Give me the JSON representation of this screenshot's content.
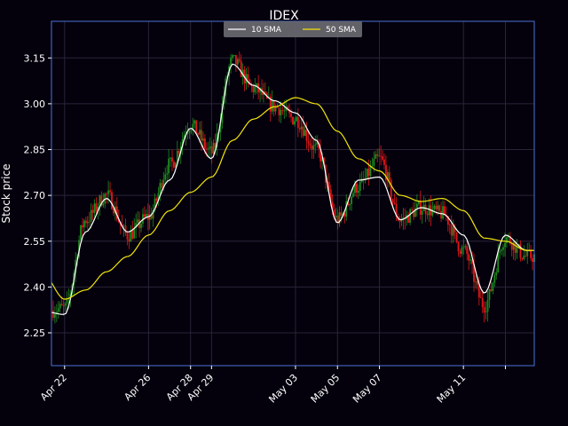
{
  "chart_data": {
    "type": "line",
    "title": "IDEX",
    "xlabel": "",
    "ylabel": "Stock price",
    "ylim": [
      2.1425,
      3.27
    ],
    "yticks": [
      2.25,
      2.4,
      2.55,
      2.7,
      2.85,
      3.0,
      3.15
    ],
    "ytick_labels": [
      "2.25",
      "2.40",
      "2.55",
      "2.70",
      "2.85",
      "3.00",
      "3.15"
    ],
    "x_range_days": [
      "Apr 21 09:00",
      "May 14 09:00"
    ],
    "xticks": [
      {
        "label": "Apr 22",
        "date": "Apr 22"
      },
      {
        "label": "Apr 26",
        "date": "Apr 26"
      },
      {
        "label": "Apr 28",
        "date": "Apr 28"
      },
      {
        "label": "Apr 29",
        "date": "Apr 29"
      },
      {
        "label": "May 03",
        "date": "May 03"
      },
      {
        "label": "May 05",
        "date": "May 05"
      },
      {
        "label": "May 07",
        "date": "May 07"
      },
      {
        "label": "May 11",
        "date": "May 11"
      },
      {
        "label": "",
        "date": "May 13"
      }
    ],
    "grid": true,
    "legend_position": "top-center",
    "colors": {
      "background": "#04010d",
      "axes_frame": "#4a72d8",
      "grid": "#2a2438",
      "up_candle": "#1f8a1f",
      "down_candle": "#e01818",
      "sma10": "#ffffff",
      "sma50": "#f2e40a",
      "legend_bg": "#6b6b72"
    },
    "price_series_x": [
      "Apr 21",
      "Apr 22",
      "Apr 23",
      "Apr 24",
      "Apr 25",
      "Apr 26",
      "Apr 27",
      "Apr 28",
      "Apr 29",
      "Apr 30",
      "May 01",
      "May 02",
      "May 03",
      "May 04",
      "May 05",
      "May 06",
      "May 07",
      "May 08",
      "May 09",
      "May 10",
      "May 11",
      "May 12",
      "May 13",
      "May 14"
    ],
    "price_series_close": [
      2.32,
      2.33,
      2.62,
      2.7,
      2.57,
      2.63,
      2.8,
      2.93,
      2.84,
      3.14,
      3.05,
      2.99,
      2.95,
      2.85,
      2.62,
      2.73,
      2.82,
      2.62,
      2.66,
      2.64,
      2.52,
      2.34,
      2.56,
      2.5
    ],
    "series": [
      {
        "name": "10 SMA",
        "color": "#ffffff",
        "x": [
          "Apr 21",
          "Apr 22",
          "Apr 23",
          "Apr 24",
          "Apr 25",
          "Apr 26",
          "Apr 27",
          "Apr 28",
          "Apr 29",
          "Apr 30",
          "May 01",
          "May 02",
          "May 03",
          "May 04",
          "May 05",
          "May 06",
          "May 07",
          "May 08",
          "May 09",
          "May 10",
          "May 11",
          "May 12",
          "May 13",
          "May 14"
        ],
        "values": [
          2.32,
          2.31,
          2.58,
          2.69,
          2.58,
          2.63,
          2.75,
          2.92,
          2.82,
          3.13,
          3.06,
          3.01,
          2.97,
          2.88,
          2.61,
          2.75,
          2.76,
          2.62,
          2.66,
          2.64,
          2.57,
          2.38,
          2.57,
          2.52
        ]
      },
      {
        "name": "50 SMA",
        "color": "#f2e40a",
        "x": [
          "Apr 21",
          "Apr 22",
          "Apr 23",
          "Apr 24",
          "Apr 25",
          "Apr 26",
          "Apr 27",
          "Apr 28",
          "Apr 29",
          "Apr 30",
          "May 01",
          "May 02",
          "May 03",
          "May 04",
          "May 05",
          "May 06",
          "May 07",
          "May 08",
          "May 09",
          "May 10",
          "May 11",
          "May 12",
          "May 13",
          "May 14"
        ],
        "values": [
          2.44,
          2.36,
          2.39,
          2.45,
          2.5,
          2.57,
          2.65,
          2.71,
          2.76,
          2.88,
          2.95,
          2.99,
          3.02,
          3.0,
          2.91,
          2.82,
          2.78,
          2.7,
          2.68,
          2.69,
          2.65,
          2.56,
          2.55,
          2.52
        ]
      }
    ]
  }
}
